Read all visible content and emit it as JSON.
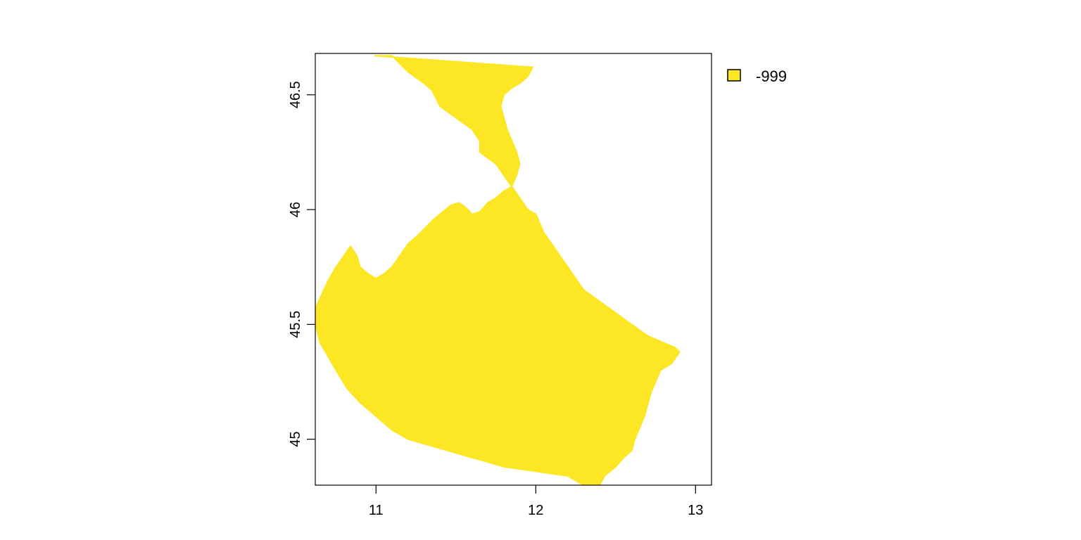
{
  "map": {
    "fill_color": "#FDE725",
    "background_color": "#FFFFFF",
    "frame_color": "#000000",
    "x_range": [
      10.62,
      13.1
    ],
    "y_range": [
      44.8,
      46.68
    ],
    "x_ticks": [
      {
        "value": 11,
        "label": "11"
      },
      {
        "value": 12,
        "label": "12"
      },
      {
        "value": 13,
        "label": "13"
      }
    ],
    "y_ticks": [
      {
        "value": 45,
        "label": "45"
      },
      {
        "value": 45.5,
        "label": "45.5"
      },
      {
        "value": 46,
        "label": "46"
      },
      {
        "value": 46.5,
        "label": "46.5"
      }
    ],
    "region_outline": [
      [
        10.99,
        46.67
      ],
      [
        11.1,
        46.67
      ],
      [
        11.2,
        46.6
      ],
      [
        11.3,
        46.55
      ],
      [
        11.35,
        46.52
      ],
      [
        11.4,
        46.45
      ],
      [
        11.5,
        46.4
      ],
      [
        11.6,
        46.35
      ],
      [
        11.65,
        46.3
      ],
      [
        11.65,
        46.25
      ],
      [
        11.75,
        46.2
      ],
      [
        11.85,
        46.1
      ],
      [
        11.9,
        46.05
      ],
      [
        11.95,
        46.0
      ],
      [
        12.0,
        45.98
      ],
      [
        12.05,
        45.9
      ],
      [
        12.1,
        45.85
      ],
      [
        12.15,
        45.8
      ],
      [
        12.2,
        45.75
      ],
      [
        12.25,
        45.7
      ],
      [
        12.3,
        45.65
      ],
      [
        12.4,
        45.6
      ],
      [
        12.5,
        45.55
      ],
      [
        12.6,
        45.5
      ],
      [
        12.7,
        45.45
      ],
      [
        12.8,
        45.42
      ],
      [
        12.87,
        45.4
      ],
      [
        12.9,
        45.38
      ],
      [
        12.85,
        45.33
      ],
      [
        12.78,
        45.3
      ],
      [
        12.75,
        45.25
      ],
      [
        12.72,
        45.2
      ],
      [
        12.7,
        45.15
      ],
      [
        12.68,
        45.1
      ],
      [
        12.65,
        45.05
      ],
      [
        12.62,
        45.0
      ],
      [
        12.6,
        44.95
      ],
      [
        12.55,
        44.92
      ],
      [
        12.5,
        44.88
      ],
      [
        12.43,
        44.84
      ],
      [
        12.4,
        44.8
      ],
      [
        12.3,
        44.8
      ],
      [
        12.25,
        44.82
      ],
      [
        12.2,
        44.84
      ],
      [
        12.1,
        44.85
      ],
      [
        12.0,
        44.86
      ],
      [
        11.9,
        44.87
      ],
      [
        11.8,
        44.88
      ],
      [
        11.7,
        44.9
      ],
      [
        11.6,
        44.92
      ],
      [
        11.5,
        44.94
      ],
      [
        11.4,
        44.96
      ],
      [
        11.3,
        44.98
      ],
      [
        11.2,
        45.0
      ],
      [
        11.1,
        45.04
      ],
      [
        11.0,
        45.1
      ],
      [
        10.9,
        45.16
      ],
      [
        10.82,
        45.22
      ],
      [
        10.75,
        45.3
      ],
      [
        10.7,
        45.36
      ],
      [
        10.65,
        45.42
      ],
      [
        10.62,
        45.5
      ],
      [
        10.62,
        45.57
      ],
      [
        10.66,
        45.63
      ],
      [
        10.7,
        45.69
      ],
      [
        10.75,
        45.75
      ],
      [
        10.8,
        45.8
      ],
      [
        10.84,
        45.84
      ],
      [
        10.88,
        45.8
      ],
      [
        10.9,
        45.75
      ],
      [
        10.95,
        45.72
      ],
      [
        11.0,
        45.7
      ],
      [
        11.05,
        45.72
      ],
      [
        11.1,
        45.75
      ],
      [
        11.15,
        45.8
      ],
      [
        11.2,
        45.85
      ],
      [
        11.28,
        45.9
      ],
      [
        11.35,
        45.95
      ],
      [
        11.4,
        45.98
      ],
      [
        11.47,
        46.02
      ],
      [
        11.52,
        46.03
      ],
      [
        11.56,
        46.01
      ],
      [
        11.6,
        45.98
      ],
      [
        11.65,
        45.99
      ],
      [
        11.7,
        46.03
      ],
      [
        11.75,
        46.05
      ],
      [
        11.8,
        46.08
      ],
      [
        11.85,
        46.1
      ],
      [
        11.88,
        46.15
      ],
      [
        11.9,
        46.2
      ],
      [
        11.88,
        46.25
      ],
      [
        11.85,
        46.3
      ],
      [
        11.82,
        46.35
      ],
      [
        11.8,
        46.4
      ],
      [
        11.78,
        46.45
      ],
      [
        11.8,
        46.5
      ],
      [
        11.85,
        46.53
      ],
      [
        11.9,
        46.55
      ],
      [
        11.95,
        46.58
      ],
      [
        11.98,
        46.62
      ]
    ],
    "legend": {
      "label": "-999",
      "swatch_color": "#FDE725"
    }
  }
}
